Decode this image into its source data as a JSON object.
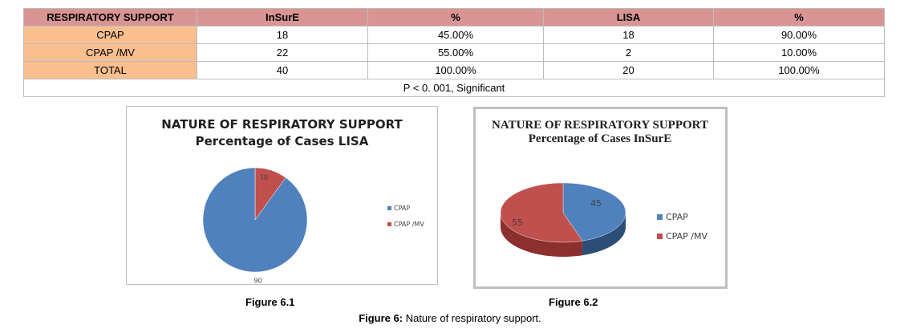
{
  "table": {
    "headers": [
      "RESPIRATORY SUPPORT",
      "InSurE",
      "%",
      "LISA",
      "%"
    ],
    "rows": [
      [
        "CPAP",
        "18",
        "45.00%",
        "18",
        "90.00%"
      ],
      [
        "CPAP /MV",
        "22",
        "55.00%",
        "2",
        "10.00%"
      ],
      [
        "TOTAL",
        "40",
        "100.00%",
        "20",
        "100.00%"
      ]
    ],
    "note": "P < 0. 001, Significant"
  },
  "chart_data": [
    {
      "type": "pie",
      "title": "NATURE OF RESPIRATORY SUPPORT",
      "subtitle": "Percentage of Cases LISA",
      "categories": [
        "CPAP",
        "CPAP /MV"
      ],
      "values": [
        90,
        10
      ],
      "colors": [
        "#4f81bd",
        "#c0504d"
      ],
      "legend": "right"
    },
    {
      "type": "pie",
      "title": "NATURE OF RESPIRATORY SUPPORT Percentage of Cases InSurE",
      "categories": [
        "CPAP",
        "CPAP /MV"
      ],
      "values": [
        45,
        55
      ],
      "colors": [
        "#4f81bd",
        "#c0504d"
      ],
      "legend": "right"
    }
  ],
  "figures": {
    "fig1": "Figure 6.1",
    "fig2": "Figure 6.2",
    "caption_label": "Figure 6:",
    "caption_text": " Nature of respiratory support."
  }
}
